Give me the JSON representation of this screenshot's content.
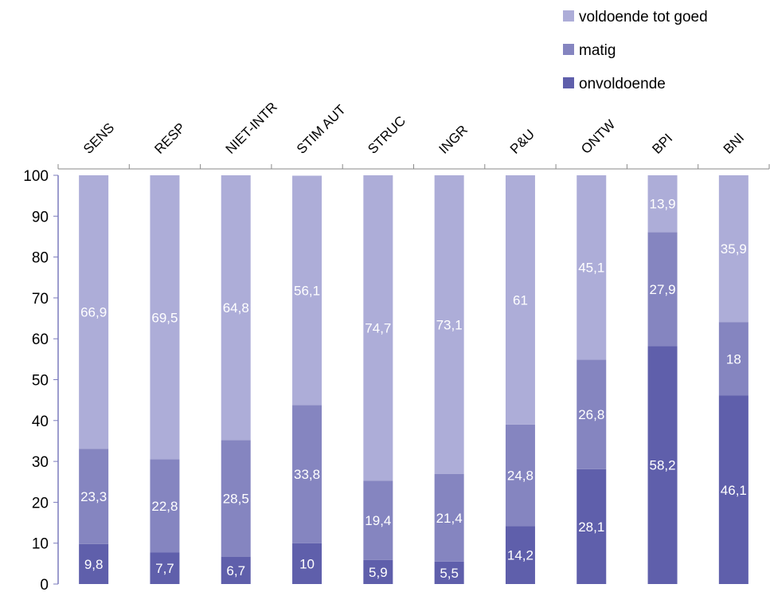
{
  "chart_data": {
    "type": "bar",
    "stacked": true,
    "categories": [
      "SENS",
      "RESP",
      "NIET-INTR",
      "STIM AUT",
      "STRUC",
      "INGR",
      "P&U",
      "ONTW",
      "BPI",
      "BNI"
    ],
    "series": [
      {
        "name": "onvoldoende",
        "color": "#5f5fab",
        "values": [
          9.8,
          7.7,
          6.7,
          10,
          5.9,
          5.5,
          14.2,
          28.1,
          58.2,
          46.1
        ]
      },
      {
        "name": "matig",
        "color": "#8585c0",
        "values": [
          23.3,
          22.8,
          28.5,
          33.8,
          19.4,
          21.4,
          24.8,
          26.8,
          27.9,
          18
        ]
      },
      {
        "name": "voldoende tot goed",
        "color": "#adadd8",
        "values": [
          66.9,
          69.5,
          64.8,
          56.1,
          74.7,
          73.1,
          61,
          45.1,
          13.9,
          35.9
        ]
      }
    ],
    "ylim": [
      0,
      100
    ],
    "yticks": [
      0,
      10,
      20,
      30,
      40,
      50,
      60,
      70,
      80,
      90,
      100
    ],
    "legend_position": "top-right",
    "category_axis_position": "top",
    "grid": false
  }
}
